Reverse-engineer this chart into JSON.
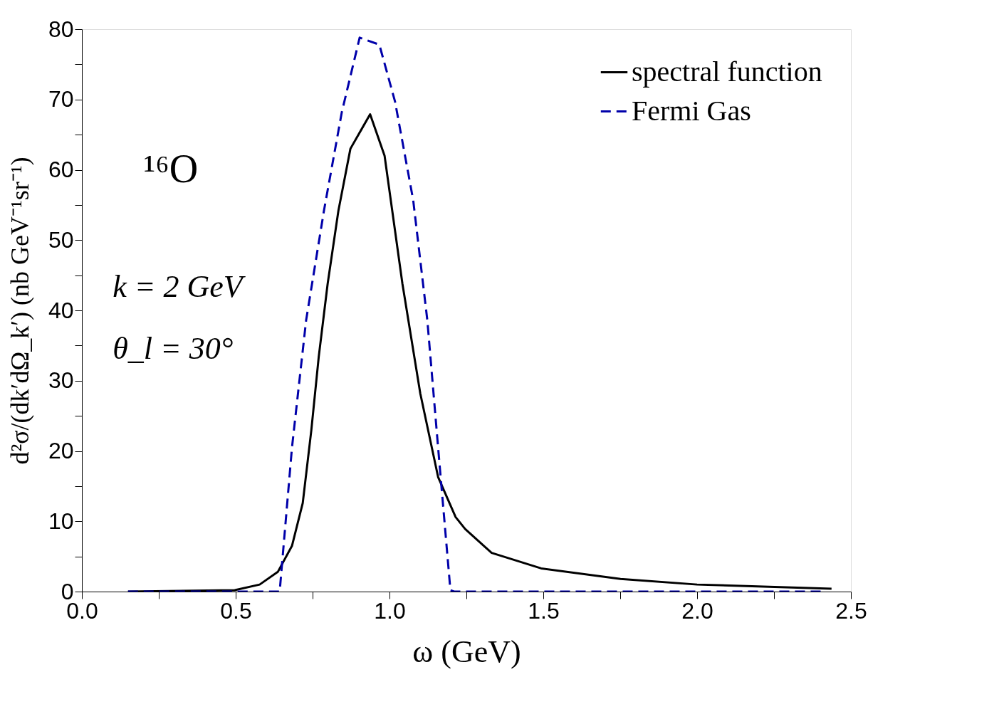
{
  "chart_data": {
    "type": "line",
    "xlabel": "ω (GeV)",
    "ylabel": "d²σ/(dk′dΩ_k′) (nb GeV⁻¹sr⁻¹)",
    "annotations": [
      "¹⁶O",
      "k = 2 GeV",
      "θ_l = 30°"
    ],
    "series": [
      {
        "name": "spectral function",
        "color": "#000000",
        "line_style": "solid",
        "x": [
          0.15,
          0.497,
          0.578,
          0.637,
          0.683,
          0.718,
          0.746,
          0.77,
          0.799,
          0.834,
          0.873,
          0.937,
          0.984,
          1.042,
          1.1,
          1.158,
          1.215,
          1.246,
          1.332,
          1.493,
          1.751,
          2.0,
          2.437
        ],
        "values": [
          0,
          0.2,
          1.0,
          2.8,
          6.5,
          12.6,
          23,
          33.4,
          43.8,
          54.2,
          63,
          67.9,
          62,
          43.8,
          28.2,
          16.3,
          10.6,
          8.9,
          5.5,
          3.3,
          1.8,
          1.0,
          0.4
        ]
      },
      {
        "name": "Fermi Gas",
        "color": "#0000aa",
        "line_style": "dashed",
        "x": [
          0.15,
          0.643,
          0.683,
          0.729,
          0.787,
          0.845,
          0.903,
          0.967,
          1.018,
          1.077,
          1.123,
          1.158,
          1.198,
          1.21,
          2.41
        ],
        "values": [
          0,
          0,
          20.5,
          38.6,
          54.2,
          68.2,
          78.8,
          77.8,
          69.7,
          55.7,
          38.6,
          20.5,
          0.2,
          0,
          0
        ]
      }
    ],
    "xlim": [
      0,
      2.5
    ],
    "xticks": [
      {
        "value": 0,
        "label": "0.0"
      },
      {
        "value": 0.25,
        "label": null
      },
      {
        "value": 0.5,
        "label": "0.5"
      },
      {
        "value": 0.75,
        "label": null
      },
      {
        "value": 1.0,
        "label": "1.0"
      },
      {
        "value": 1.25,
        "label": null
      },
      {
        "value": 1.5,
        "label": "1.5"
      },
      {
        "value": 1.75,
        "label": null
      },
      {
        "value": 2.0,
        "label": "2.0"
      },
      {
        "value": 2.25,
        "label": null
      },
      {
        "value": 2.5,
        "label": "2.5"
      }
    ],
    "ylim": [
      0,
      80
    ],
    "yticks": [
      0,
      {
        "value": 5,
        "label": null
      },
      10,
      {
        "value": 15,
        "label": null
      },
      20,
      {
        "value": 25,
        "label": null
      },
      30,
      {
        "value": 35,
        "label": null
      },
      40,
      {
        "value": 45,
        "label": null
      },
      50,
      {
        "value": 55,
        "label": null
      },
      60,
      {
        "value": 65,
        "label": null
      },
      70,
      {
        "value": 75,
        "label": null
      },
      80
    ],
    "grid": false,
    "legend": "top right"
  }
}
